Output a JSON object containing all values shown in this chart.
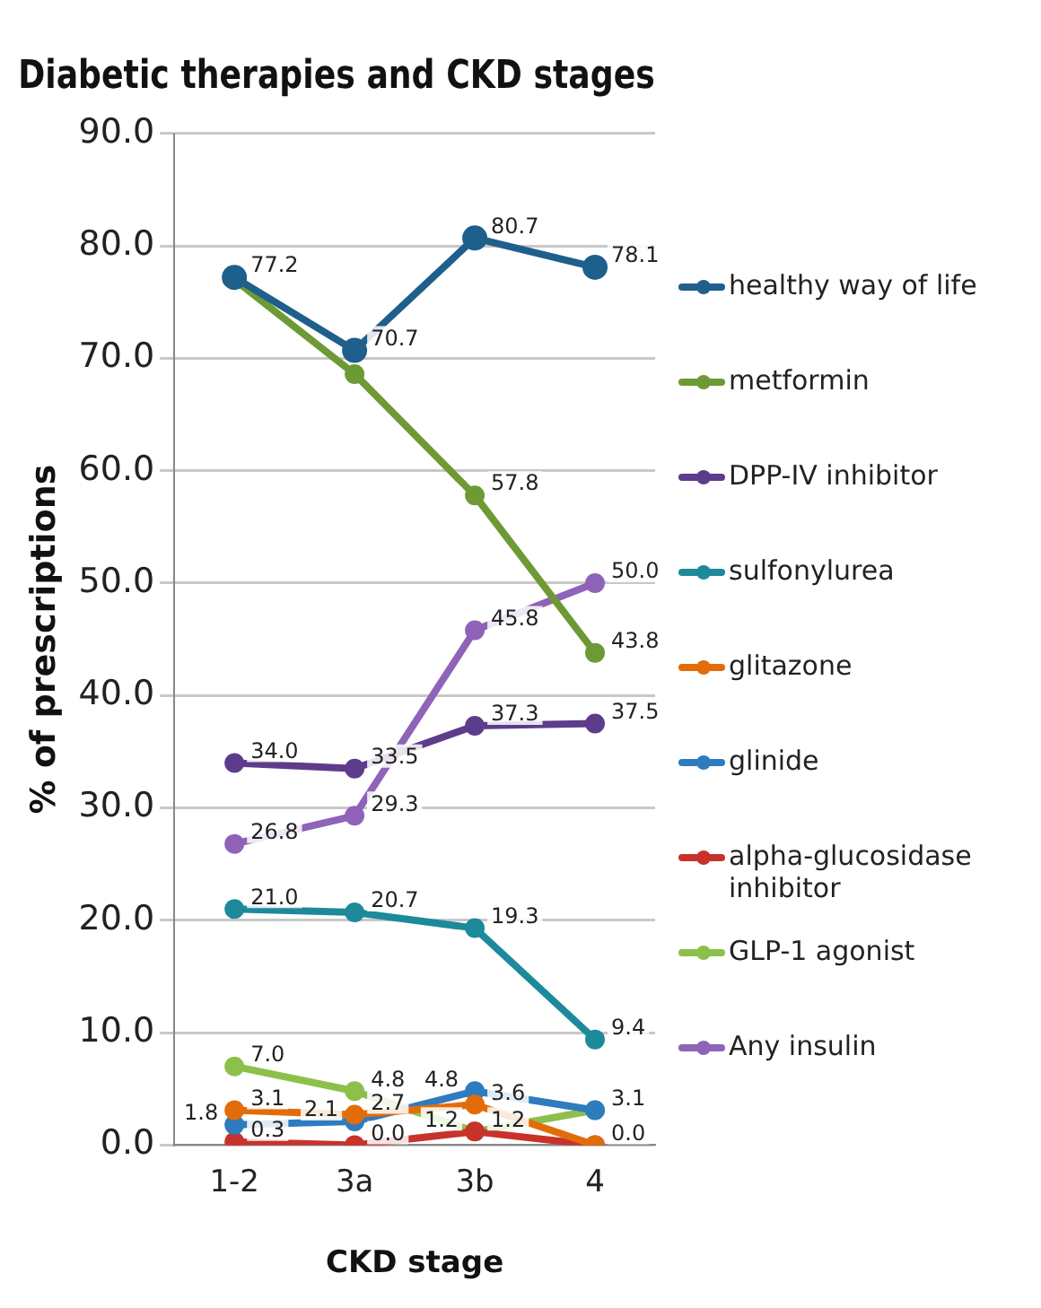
{
  "chart_data": {
    "type": "line",
    "title": "Diabetic therapies and CKD stages",
    "xlabel": "CKD stage",
    "ylabel": "% of prescriptions",
    "categories": [
      "1-2",
      "3a",
      "3b",
      "4"
    ],
    "ylim": [
      0,
      90
    ],
    "yticks": [
      {
        "value": 0,
        "label": "0.0"
      },
      {
        "value": 10,
        "label": "10.0"
      },
      {
        "value": 20,
        "label": "20.0"
      },
      {
        "value": 30,
        "label": "30.0"
      },
      {
        "value": 40,
        "label": "40.0"
      },
      {
        "value": 50,
        "label": "50.0"
      },
      {
        "value": 60,
        "label": "60.0"
      },
      {
        "value": 70,
        "label": "70.0"
      },
      {
        "value": 80,
        "label": "80.0"
      },
      {
        "value": 90,
        "label": "90.0"
      }
    ],
    "grid": "y",
    "legend": "right",
    "marker": "circle",
    "line_style": "solid",
    "series": [
      {
        "name": "healthy way of life",
        "color": "#1f5f8b",
        "values": [
          77.2,
          70.7,
          80.7,
          78.1
        ],
        "value_labels": [
          "77.2",
          "70.7",
          "80.7",
          "78.1"
        ]
      },
      {
        "name": "metformin",
        "color": "#6e9a35",
        "values": [
          77.0,
          68.6,
          57.8,
          43.8
        ],
        "value_labels": [
          null,
          null,
          "57.8",
          "43.8"
        ]
      },
      {
        "name": "DPP-IV inhibitor",
        "color": "#5e3c8c",
        "values": [
          34.0,
          33.5,
          37.3,
          37.5
        ],
        "value_labels": [
          "34.0",
          "33.5",
          "37.3",
          "37.5"
        ]
      },
      {
        "name": "sulfonylurea",
        "color": "#1d8a9b",
        "values": [
          21.0,
          20.7,
          19.3,
          9.4
        ],
        "value_labels": [
          "21.0",
          "20.7",
          "19.3",
          "9.4"
        ]
      },
      {
        "name": "glitazone",
        "color": "#e36c0a",
        "values": [
          3.1,
          2.7,
          3.6,
          0.0
        ],
        "value_labels": [
          "3.1",
          "2.7",
          "3.6",
          null
        ]
      },
      {
        "name": "glinide",
        "color": "#2e7bbf",
        "values": [
          1.8,
          2.1,
          4.8,
          3.1
        ],
        "value_labels": [
          "1.8",
          "2.1",
          "4.8",
          null
        ]
      },
      {
        "name": "alpha-glucosidase inhibitor",
        "color": "#c8322b",
        "values": [
          0.3,
          0.0,
          1.2,
          0.0
        ],
        "value_labels": [
          "0.3",
          "0.0",
          "1.2",
          "0.0"
        ]
      },
      {
        "name": "GLP-1 agonist",
        "color": "#8cc04a",
        "values": [
          7.0,
          4.8,
          1.2,
          3.1
        ],
        "value_labels": [
          "7.0",
          "4.8",
          "1.2",
          "3.1"
        ]
      },
      {
        "name": "Any insulin",
        "color": "#8e63b8",
        "values": [
          26.8,
          29.3,
          45.8,
          50.0
        ],
        "value_labels": [
          "26.8",
          "29.3",
          "45.8",
          "50.0"
        ]
      }
    ]
  }
}
